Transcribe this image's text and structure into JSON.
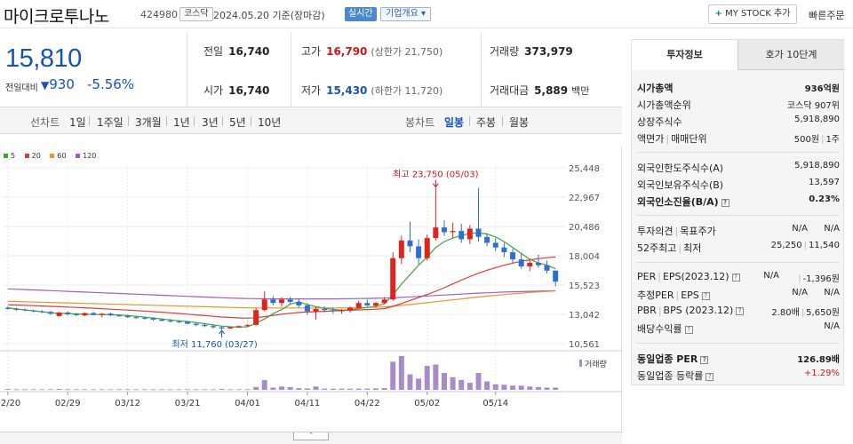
{
  "header": {
    "name": "마이크로투나노",
    "code": "424980",
    "market": "코스닥",
    "date": "2024.05.20",
    "basis": "기준(장마감)",
    "realtime": "실시간",
    "corp_info": "기업개요",
    "mystock": "MY STOCK 추가",
    "quick_order": "빠른주문"
  },
  "price": {
    "current": "15,810",
    "diff_label": "전일대비",
    "diff": "930",
    "rate": "-5.56%"
  },
  "stats": {
    "prev_label": "전일",
    "prev": "16,740",
    "high_label": "고가",
    "high": "16,790",
    "upper": "(상한가 21,750)",
    "volume_label": "거래량",
    "volume": "373,979",
    "open_label": "시가",
    "open": "16,740",
    "low_label": "저가",
    "low": "15,430",
    "lower": "(하한가 11,720)",
    "amount_label": "거래대금",
    "amount": "5,889",
    "amount_unit": "백만"
  },
  "tabs": {
    "line_caption": "선차트",
    "line": [
      "1일",
      "1주일",
      "3개월",
      "1년",
      "3년",
      "5년",
      "10년"
    ],
    "candle_caption": "봉차트",
    "candle": [
      "일봉",
      "주봉",
      "월봉"
    ],
    "candle_selected": 0
  },
  "chart_data": {
    "type": "candlestick",
    "legend": [
      {
        "name": "5",
        "color": "#3fa53a"
      },
      {
        "name": "20",
        "color": "#e03a3a"
      },
      {
        "name": "60",
        "color": "#f0922e"
      },
      {
        "name": "120",
        "color": "#a05cc8"
      }
    ],
    "y_ticks": [
      "25,448",
      "22,967",
      "20,486",
      "18,004",
      "15,523",
      "13,042",
      "10,561"
    ],
    "ylim": [
      10561,
      25448
    ],
    "x_ticks": [
      "02/20",
      "02/29",
      "03/12",
      "03/21",
      "04/01",
      "04/11",
      "04/22",
      "05/02",
      "05/14"
    ],
    "x_tick_index": [
      0,
      7,
      14,
      21,
      28,
      35,
      42,
      49,
      57
    ],
    "high_annotation": "최고 23,750 (05/03)",
    "low_annotation": "최저 11,760 (03/27)",
    "high_index": 50,
    "low_index": 25,
    "volume_label": "거래량",
    "candles": [
      [
        13600,
        13700,
        13450,
        13500
      ],
      [
        13500,
        13600,
        13350,
        13450
      ],
      [
        13450,
        13550,
        13300,
        13380
      ],
      [
        13380,
        13450,
        13200,
        13300
      ],
      [
        13300,
        13400,
        13150,
        13250
      ],
      [
        13250,
        13350,
        13000,
        13100
      ],
      [
        12900,
        13250,
        12850,
        13200
      ],
      [
        13200,
        13300,
        12950,
        13050
      ],
      [
        13050,
        13150,
        12900,
        13000
      ],
      [
        12950,
        13200,
        12900,
        13150
      ],
      [
        13150,
        13250,
        12950,
        13000
      ],
      [
        13000,
        13150,
        12800,
        13100
      ],
      [
        13100,
        13200,
        12900,
        12950
      ],
      [
        12950,
        13050,
        12850,
        12900
      ],
      [
        12900,
        13000,
        12750,
        12800
      ],
      [
        12800,
        12900,
        12650,
        12750
      ],
      [
        12750,
        12850,
        12600,
        12700
      ],
      [
        12700,
        12800,
        12500,
        12600
      ],
      [
        12600,
        12700,
        12450,
        12500
      ],
      [
        12500,
        12650,
        12350,
        12450
      ],
      [
        12450,
        12550,
        12300,
        12400
      ],
      [
        12400,
        12500,
        12200,
        12250
      ],
      [
        12250,
        12350,
        12050,
        12150
      ],
      [
        12150,
        12250,
        11950,
        12050
      ],
      [
        12050,
        12150,
        11850,
        11950
      ],
      [
        11950,
        12050,
        11760,
        11850
      ],
      [
        11850,
        12000,
        11800,
        11950
      ],
      [
        11950,
        12100,
        11900,
        12050
      ],
      [
        12100,
        12200,
        12000,
        12150
      ],
      [
        12150,
        13600,
        12100,
        13400
      ],
      [
        13400,
        15000,
        13300,
        14300
      ],
      [
        14300,
        14600,
        13800,
        14000
      ],
      [
        14000,
        14500,
        13700,
        14300
      ],
      [
        14300,
        14500,
        13900,
        14100
      ],
      [
        14100,
        14400,
        13600,
        13800
      ],
      [
        13800,
        14000,
        13000,
        13300
      ],
      [
        13300,
        13700,
        12600,
        13500
      ],
      [
        13500,
        13700,
        13200,
        13400
      ],
      [
        13400,
        13600,
        13100,
        13300
      ],
      [
        13300,
        13500,
        13100,
        13400
      ],
      [
        13400,
        13700,
        13200,
        13600
      ],
      [
        13600,
        14200,
        13500,
        14000
      ],
      [
        14000,
        14300,
        13700,
        13800
      ],
      [
        13800,
        14100,
        13600,
        14000
      ],
      [
        14000,
        14500,
        13900,
        14300
      ],
      [
        14300,
        18300,
        14200,
        17800
      ],
      [
        17800,
        19700,
        17300,
        19300
      ],
      [
        19300,
        20900,
        18300,
        18800
      ],
      [
        18800,
        19400,
        17300,
        17800
      ],
      [
        17800,
        19800,
        17600,
        19500
      ],
      [
        19500,
        23750,
        19300,
        20400
      ],
      [
        20400,
        21000,
        19700,
        20000
      ],
      [
        20000,
        20800,
        19500,
        20100
      ],
      [
        20100,
        20700,
        19100,
        19400
      ],
      [
        19400,
        20600,
        19000,
        20300
      ],
      [
        20300,
        23750,
        19200,
        19600
      ],
      [
        19600,
        19900,
        18800,
        19100
      ],
      [
        19100,
        19500,
        18400,
        18700
      ],
      [
        18700,
        19100,
        17900,
        18300
      ],
      [
        18300,
        18600,
        17400,
        17700
      ],
      [
        17700,
        18200,
        16900,
        17100
      ],
      [
        17100,
        17700,
        16700,
        17400
      ],
      [
        17400,
        18100,
        17000,
        17200
      ],
      [
        17200,
        17600,
        16500,
        16740
      ],
      [
        16740,
        16790,
        15430,
        15810
      ]
    ],
    "ma5": [
      13600,
      13500,
      13420,
      13340,
      13260,
      13160,
      13130,
      13110,
      13080,
      13050,
      13030,
      13020,
      13010,
      12990,
      12940,
      12880,
      12810,
      12730,
      12650,
      12570,
      12500,
      12430,
      12350,
      12250,
      12150,
      12050,
      11990,
      11960,
      11990,
      12300,
      12650,
      13100,
      13450,
      13900,
      14100,
      13880,
      13700,
      13560,
      13470,
      13390,
      13440,
      13540,
      13620,
      13740,
      13940,
      14700,
      15600,
      16400,
      17200,
      17900,
      18700,
      19200,
      19500,
      19700,
      19900,
      19950,
      19850,
      19600,
      19200,
      18700,
      18200,
      17700,
      17400,
      17200,
      16900
    ],
    "ma20": [
      13850,
      13830,
      13800,
      13780,
      13750,
      13720,
      13690,
      13660,
      13630,
      13600,
      13560,
      13520,
      13480,
      13440,
      13400,
      13360,
      13320,
      13270,
      13220,
      13170,
      13120,
      13060,
      13000,
      12940,
      12880,
      12820,
      12780,
      12740,
      12720,
      12760,
      12850,
      12960,
      13050,
      13130,
      13200,
      13240,
      13270,
      13300,
      13330,
      13360,
      13390,
      13420,
      13450,
      13480,
      13520,
      13720,
      13960,
      14220,
      14460,
      14720,
      15000,
      15300,
      15620,
      15940,
      16240,
      16520,
      16780,
      17000,
      17200,
      17380,
      17530,
      17660,
      17760,
      17840,
      17900
    ],
    "ma60": [
      14150,
      14130,
      14110,
      14090,
      14070,
      14050,
      14030,
      14010,
      13990,
      13970,
      13950,
      13930,
      13910,
      13890,
      13870,
      13850,
      13830,
      13810,
      13790,
      13770,
      13750,
      13730,
      13710,
      13690,
      13670,
      13650,
      13630,
      13610,
      13590,
      13580,
      13580,
      13580,
      13580,
      13580,
      13580,
      13580,
      13580,
      13580,
      13580,
      13590,
      13600,
      13610,
      13630,
      13650,
      13670,
      13730,
      13800,
      13870,
      13950,
      14030,
      14110,
      14190,
      14270,
      14350,
      14430,
      14510,
      14580,
      14650,
      14720,
      14780,
      14840,
      14890,
      14940,
      14980,
      15020
    ],
    "ma120": [
      15200,
      15170,
      15140,
      15110,
      15080,
      15050,
      15020,
      14990,
      14960,
      14930,
      14900,
      14870,
      14840,
      14810,
      14780,
      14750,
      14720,
      14690,
      14660,
      14630,
      14600,
      14570,
      14540,
      14510,
      14480,
      14450,
      14420,
      14400,
      14380,
      14370,
      14360,
      14350,
      14350,
      14350,
      14350,
      14350,
      14350,
      14350,
      14350,
      14360,
      14370,
      14380,
      14390,
      14400,
      14420,
      14450,
      14480,
      14520,
      14560,
      14600,
      14640,
      14680,
      14720,
      14760,
      14800,
      14840,
      14870,
      14900,
      14930,
      14950,
      14970,
      14990,
      15010,
      15030,
      15040
    ],
    "volumes": [
      3,
      2,
      2,
      2,
      2,
      2,
      3,
      2,
      2,
      2,
      2,
      2,
      2,
      2,
      2,
      2,
      2,
      2,
      2,
      2,
      2,
      2,
      2,
      2,
      2,
      3,
      2,
      2,
      2,
      10,
      35,
      8,
      12,
      10,
      6,
      5,
      12,
      4,
      4,
      4,
      4,
      4,
      4,
      5,
      6,
      100,
      120,
      55,
      40,
      85,
      90,
      60,
      45,
      35,
      25,
      60,
      30,
      20,
      18,
      15,
      15,
      12,
      10,
      8,
      8
    ]
  },
  "side": {
    "tab_active": "투자정보",
    "tab_other": "호가 10단계",
    "market_cap_label": "시가총액",
    "market_cap": "936억원",
    "cap_rank_label": "시가총액순위",
    "cap_rank": "코스닥 907위",
    "shares_label": "상장주식수",
    "shares": "5,918,890",
    "face_label": "액면가",
    "unit_label": "매매단위",
    "face": "500원",
    "unit": "1주",
    "foreign_limit_label": "외국인한도주식수(A)",
    "foreign_limit": "5,918,890",
    "foreign_hold_label": "외국인보유주식수(B)",
    "foreign_hold": "13,597",
    "foreign_rate_label": "외국인소진율(B/A)",
    "foreign_rate": "0.23%",
    "opinion_label": "투자의견",
    "target_label": "목표주가",
    "opinion": "N/A",
    "target": "N/A",
    "w52_label": "52주최고",
    "w52_low_label": "최저",
    "w52_high": "25,250",
    "w52_low": "11,540",
    "per_label": "PER",
    "eps_label": "EPS(2023.12)",
    "per": "N/A",
    "eps": "-1,396원",
    "est_per_label": "추정PER",
    "est_eps_label": "EPS",
    "est_per": "N/A",
    "est_eps": "N/A",
    "pbr_label": "PBR",
    "bps_label": "BPS (2023.12)",
    "pbr": "2.80배",
    "bps": "5,650원",
    "div_label": "배당수익률",
    "div": "N/A",
    "ind_per_label": "동일업종 PER",
    "ind_per": "126.89배",
    "ind_rate_label": "동일업종 등락률",
    "ind_rate": "+1.29%"
  }
}
